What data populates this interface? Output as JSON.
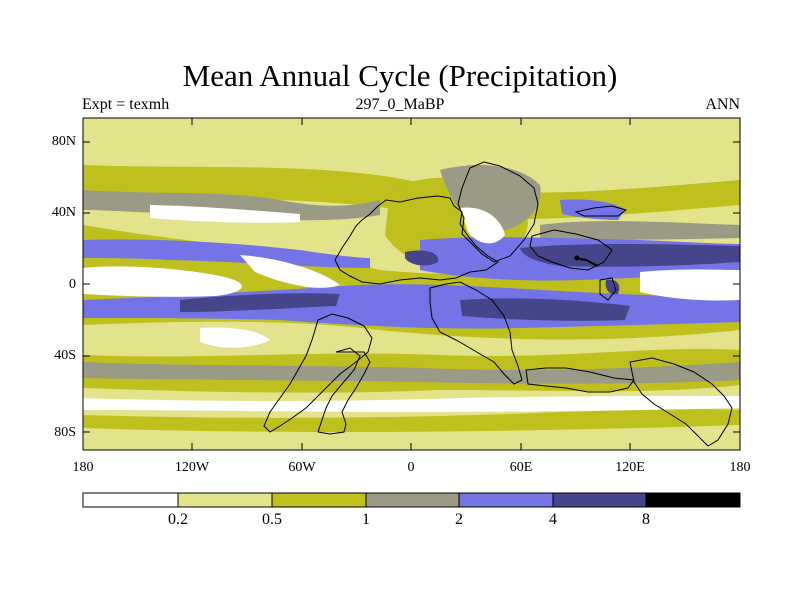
{
  "title": "Mean Annual Cycle (Precipitation)",
  "subtitle_left": "Expt = texmh",
  "subtitle_center": "297_0_MaBP",
  "subtitle_right": "ANN",
  "y_axis_labels": [
    "80N",
    "40N",
    "0",
    "40S",
    "80S"
  ],
  "x_axis_labels": [
    "180",
    "120W",
    "60W",
    "0",
    "60E",
    "120E",
    "180"
  ],
  "colorbar": {
    "levels": [
      "0.2",
      "0.5",
      "1",
      "2",
      "4",
      "8"
    ],
    "colors": [
      "#ffffff",
      "#e3e38c",
      "#bfbf1e",
      "#9a9a86",
      "#7474e6",
      "#45458c",
      "#000000"
    ]
  }
}
